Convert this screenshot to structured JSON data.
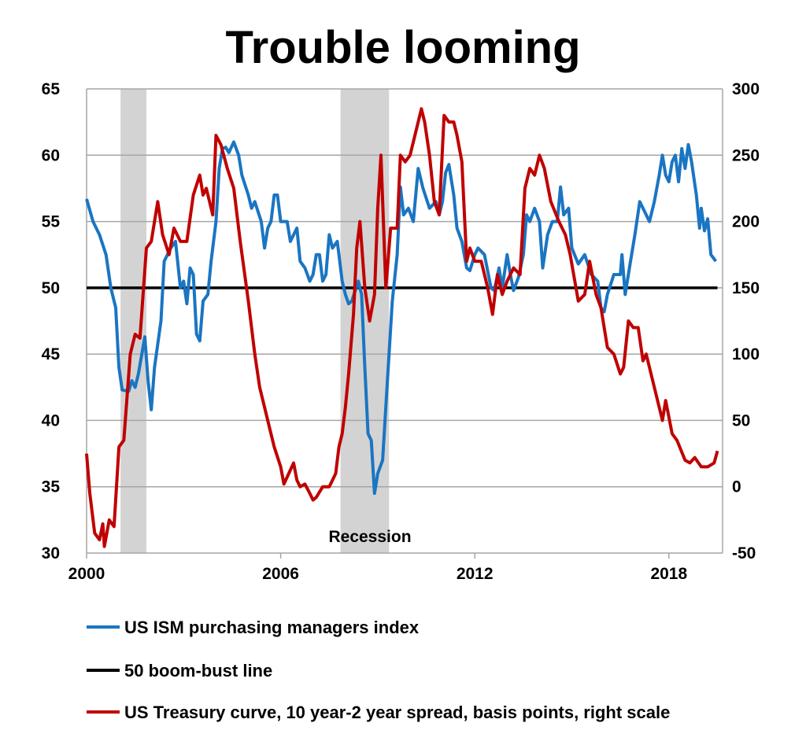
{
  "chart_data": {
    "type": "line",
    "title": "Trouble looming",
    "xlim": [
      2000,
      2019.7
    ],
    "x_ticks": [
      "2000",
      "2006",
      "2012",
      "2018"
    ],
    "y_left": {
      "lim": [
        30,
        65
      ],
      "ticks": [
        "30",
        "35",
        "40",
        "45",
        "50",
        "55",
        "60",
        "65"
      ]
    },
    "y_right": {
      "lim": [
        -50,
        300
      ],
      "ticks": [
        "-50",
        "0",
        "50",
        "100",
        "150",
        "200",
        "250",
        "300"
      ]
    },
    "grid": true,
    "legend_placement": "bottom",
    "recession_label": "Recession",
    "recessions": [
      [
        2001.05,
        2001.85
      ],
      [
        2007.85,
        2009.35
      ]
    ],
    "recession_color": "#d3d3d3",
    "series": [
      {
        "name": "US ISM purchasing managers index",
        "axis": "left",
        "color": "#1a75c2",
        "points": [
          [
            2000.0,
            56.7
          ],
          [
            2000.2,
            55
          ],
          [
            2000.4,
            54
          ],
          [
            2000.6,
            52.5
          ],
          [
            2000.75,
            50
          ],
          [
            2000.9,
            48.5
          ],
          [
            2001.0,
            44
          ],
          [
            2001.1,
            42.3
          ],
          [
            2001.3,
            42.2
          ],
          [
            2001.4,
            43
          ],
          [
            2001.5,
            42.5
          ],
          [
            2001.6,
            43.5
          ],
          [
            2001.8,
            46.3
          ],
          [
            2001.9,
            43
          ],
          [
            2002.0,
            40.8
          ],
          [
            2002.1,
            44
          ],
          [
            2002.3,
            47.5
          ],
          [
            2002.4,
            52
          ],
          [
            2002.6,
            53
          ],
          [
            2002.75,
            53.5
          ],
          [
            2002.9,
            50
          ],
          [
            2003.0,
            50.5
          ],
          [
            2003.1,
            48.8
          ],
          [
            2003.2,
            51.5
          ],
          [
            2003.3,
            51
          ],
          [
            2003.4,
            46.5
          ],
          [
            2003.5,
            46
          ],
          [
            2003.6,
            49
          ],
          [
            2003.75,
            49.5
          ],
          [
            2003.85,
            52
          ],
          [
            2004.0,
            55
          ],
          [
            2004.1,
            59
          ],
          [
            2004.2,
            60.5
          ],
          [
            2004.3,
            60.6
          ],
          [
            2004.4,
            60.2
          ],
          [
            2004.55,
            61
          ],
          [
            2004.7,
            60
          ],
          [
            2004.8,
            58.5
          ],
          [
            2005.0,
            57
          ],
          [
            2005.1,
            56
          ],
          [
            2005.2,
            56.5
          ],
          [
            2005.4,
            55
          ],
          [
            2005.5,
            53
          ],
          [
            2005.6,
            54.5
          ],
          [
            2005.7,
            55
          ],
          [
            2005.8,
            57
          ],
          [
            2005.9,
            57
          ],
          [
            2006.0,
            55
          ],
          [
            2006.2,
            55
          ],
          [
            2006.3,
            53.5
          ],
          [
            2006.5,
            54.5
          ],
          [
            2006.6,
            52
          ],
          [
            2006.75,
            51.5
          ],
          [
            2006.9,
            50.5
          ],
          [
            2007.0,
            51
          ],
          [
            2007.1,
            52.5
          ],
          [
            2007.2,
            52.5
          ],
          [
            2007.3,
            50.5
          ],
          [
            2007.4,
            51
          ],
          [
            2007.5,
            54
          ],
          [
            2007.6,
            53
          ],
          [
            2007.75,
            53.5
          ],
          [
            2007.8,
            52.5
          ],
          [
            2007.9,
            50.5
          ],
          [
            2008.0,
            49.5
          ],
          [
            2008.1,
            48.8
          ],
          [
            2008.2,
            49
          ],
          [
            2008.4,
            50.5
          ],
          [
            2008.5,
            49.5
          ],
          [
            2008.6,
            44
          ],
          [
            2008.7,
            39
          ],
          [
            2008.8,
            38.5
          ],
          [
            2008.9,
            34.5
          ],
          [
            2009.0,
            36
          ],
          [
            2009.15,
            37
          ],
          [
            2009.3,
            43
          ],
          [
            2009.45,
            49
          ],
          [
            2009.6,
            52.5
          ],
          [
            2009.7,
            57.6
          ],
          [
            2009.8,
            55.5
          ],
          [
            2009.95,
            56
          ],
          [
            2010.1,
            55
          ],
          [
            2010.25,
            59
          ],
          [
            2010.4,
            57.5
          ],
          [
            2010.6,
            56
          ],
          [
            2010.8,
            56.5
          ],
          [
            2010.9,
            55.5
          ],
          [
            2011.0,
            56.5
          ],
          [
            2011.1,
            58.7
          ],
          [
            2011.2,
            59.3
          ],
          [
            2011.35,
            57
          ],
          [
            2011.45,
            54.5
          ],
          [
            2011.6,
            53.5
          ],
          [
            2011.75,
            51.5
          ],
          [
            2011.85,
            51.3
          ],
          [
            2012.0,
            52.5
          ],
          [
            2012.1,
            53
          ],
          [
            2012.3,
            52.5
          ],
          [
            2012.5,
            50
          ],
          [
            2012.6,
            49.8
          ],
          [
            2012.75,
            51.5
          ],
          [
            2012.85,
            50
          ],
          [
            2013.0,
            52.5
          ],
          [
            2013.1,
            51
          ],
          [
            2013.2,
            49.8
          ],
          [
            2013.35,
            50.8
          ],
          [
            2013.5,
            52.5
          ],
          [
            2013.6,
            55.5
          ],
          [
            2013.7,
            55
          ],
          [
            2013.85,
            56
          ],
          [
            2014.0,
            55
          ],
          [
            2014.1,
            51.5
          ],
          [
            2014.25,
            54
          ],
          [
            2014.4,
            55
          ],
          [
            2014.55,
            55
          ],
          [
            2014.65,
            57.6
          ],
          [
            2014.75,
            55.5
          ],
          [
            2014.9,
            56
          ],
          [
            2015.0,
            53
          ],
          [
            2015.2,
            51.8
          ],
          [
            2015.4,
            52.5
          ],
          [
            2015.6,
            51
          ],
          [
            2015.8,
            50.5
          ],
          [
            2015.9,
            48.5
          ],
          [
            2016.0,
            48.2
          ],
          [
            2016.1,
            49.5
          ],
          [
            2016.3,
            51
          ],
          [
            2016.5,
            51
          ],
          [
            2016.55,
            52.5
          ],
          [
            2016.65,
            49.5
          ],
          [
            2016.8,
            51.8
          ],
          [
            2016.95,
            54
          ],
          [
            2017.1,
            56.5
          ],
          [
            2017.3,
            55.5
          ],
          [
            2017.4,
            55
          ],
          [
            2017.55,
            56.5
          ],
          [
            2017.7,
            58.5
          ],
          [
            2017.8,
            60
          ],
          [
            2017.9,
            58.5
          ],
          [
            2018.0,
            58
          ],
          [
            2018.1,
            59.5
          ],
          [
            2018.2,
            60
          ],
          [
            2018.3,
            58
          ],
          [
            2018.4,
            60.5
          ],
          [
            2018.5,
            59
          ],
          [
            2018.6,
            60.8
          ],
          [
            2018.7,
            59.5
          ],
          [
            2018.85,
            57
          ],
          [
            2018.95,
            54.5
          ],
          [
            2019.0,
            56
          ],
          [
            2019.1,
            54.3
          ],
          [
            2019.2,
            55.2
          ],
          [
            2019.3,
            52.5
          ],
          [
            2019.45,
            52.0
          ]
        ]
      },
      {
        "name": "50 boom-bust line",
        "axis": "left",
        "color": "#000000",
        "points": [
          [
            2000.0,
            50
          ],
          [
            2019.5,
            50
          ]
        ]
      },
      {
        "name": "US Treasury curve, 10 year-2 year spread, basis points, right scale",
        "axis": "right",
        "color": "#c00000",
        "points": [
          [
            2000.0,
            25
          ],
          [
            2000.1,
            -5
          ],
          [
            2000.25,
            -35
          ],
          [
            2000.4,
            -40
          ],
          [
            2000.5,
            -28
          ],
          [
            2000.55,
            -45
          ],
          [
            2000.7,
            -25
          ],
          [
            2000.85,
            -30
          ],
          [
            2001.0,
            30
          ],
          [
            2001.15,
            35
          ],
          [
            2001.35,
            100
          ],
          [
            2001.5,
            115
          ],
          [
            2001.65,
            112
          ],
          [
            2001.85,
            180
          ],
          [
            2002.0,
            185
          ],
          [
            2002.2,
            215
          ],
          [
            2002.35,
            190
          ],
          [
            2002.55,
            175
          ],
          [
            2002.7,
            195
          ],
          [
            2002.9,
            185
          ],
          [
            2003.1,
            185
          ],
          [
            2003.3,
            220
          ],
          [
            2003.5,
            235
          ],
          [
            2003.6,
            220
          ],
          [
            2003.7,
            225
          ],
          [
            2003.9,
            205
          ],
          [
            2004.0,
            265
          ],
          [
            2004.15,
            258
          ],
          [
            2004.35,
            240
          ],
          [
            2004.55,
            225
          ],
          [
            2004.75,
            185
          ],
          [
            2005.0,
            140
          ],
          [
            2005.2,
            100
          ],
          [
            2005.35,
            75
          ],
          [
            2005.5,
            60
          ],
          [
            2005.65,
            45
          ],
          [
            2005.8,
            30
          ],
          [
            2006.0,
            15
          ],
          [
            2006.1,
            2
          ],
          [
            2006.25,
            10
          ],
          [
            2006.4,
            18
          ],
          [
            2006.5,
            5
          ],
          [
            2006.6,
            0
          ],
          [
            2006.75,
            2
          ],
          [
            2006.9,
            -5
          ],
          [
            2007.0,
            -10
          ],
          [
            2007.1,
            -8
          ],
          [
            2007.3,
            0
          ],
          [
            2007.5,
            0
          ],
          [
            2007.7,
            10
          ],
          [
            2007.8,
            30
          ],
          [
            2007.9,
            40
          ],
          [
            2008.0,
            60
          ],
          [
            2008.1,
            85
          ],
          [
            2008.25,
            130
          ],
          [
            2008.35,
            180
          ],
          [
            2008.45,
            200
          ],
          [
            2008.6,
            150
          ],
          [
            2008.75,
            125
          ],
          [
            2008.9,
            145
          ],
          [
            2009.0,
            210
          ],
          [
            2009.1,
            250
          ],
          [
            2009.25,
            150
          ],
          [
            2009.4,
            195
          ],
          [
            2009.6,
            195
          ],
          [
            2009.7,
            250
          ],
          [
            2009.85,
            245
          ],
          [
            2010.0,
            250
          ],
          [
            2010.2,
            270
          ],
          [
            2010.35,
            285
          ],
          [
            2010.45,
            275
          ],
          [
            2010.6,
            250
          ],
          [
            2010.75,
            215
          ],
          [
            2010.9,
            205
          ],
          [
            2011.05,
            280
          ],
          [
            2011.2,
            275
          ],
          [
            2011.35,
            275
          ],
          [
            2011.45,
            265
          ],
          [
            2011.6,
            245
          ],
          [
            2011.75,
            170
          ],
          [
            2011.85,
            180
          ],
          [
            2012.0,
            170
          ],
          [
            2012.2,
            170
          ],
          [
            2012.4,
            150
          ],
          [
            2012.55,
            130
          ],
          [
            2012.7,
            160
          ],
          [
            2012.85,
            145
          ],
          [
            2013.0,
            155
          ],
          [
            2013.2,
            165
          ],
          [
            2013.4,
            160
          ],
          [
            2013.55,
            225
          ],
          [
            2013.7,
            240
          ],
          [
            2013.85,
            235
          ],
          [
            2014.0,
            250
          ],
          [
            2014.15,
            240
          ],
          [
            2014.35,
            215
          ],
          [
            2014.6,
            200
          ],
          [
            2014.8,
            190
          ],
          [
            2014.95,
            175
          ],
          [
            2015.2,
            140
          ],
          [
            2015.4,
            145
          ],
          [
            2015.55,
            170
          ],
          [
            2015.75,
            145
          ],
          [
            2015.9,
            135
          ],
          [
            2016.1,
            105
          ],
          [
            2016.3,
            100
          ],
          [
            2016.5,
            85
          ],
          [
            2016.6,
            90
          ],
          [
            2016.75,
            125
          ],
          [
            2016.9,
            120
          ],
          [
            2017.05,
            120
          ],
          [
            2017.2,
            95
          ],
          [
            2017.3,
            100
          ],
          [
            2017.55,
            75
          ],
          [
            2017.8,
            50
          ],
          [
            2017.9,
            65
          ],
          [
            2018.1,
            40
          ],
          [
            2018.25,
            35
          ],
          [
            2018.5,
            20
          ],
          [
            2018.65,
            18
          ],
          [
            2018.8,
            22
          ],
          [
            2019.0,
            15
          ],
          [
            2019.2,
            15
          ],
          [
            2019.4,
            18
          ],
          [
            2019.5,
            27
          ]
        ]
      }
    ]
  }
}
